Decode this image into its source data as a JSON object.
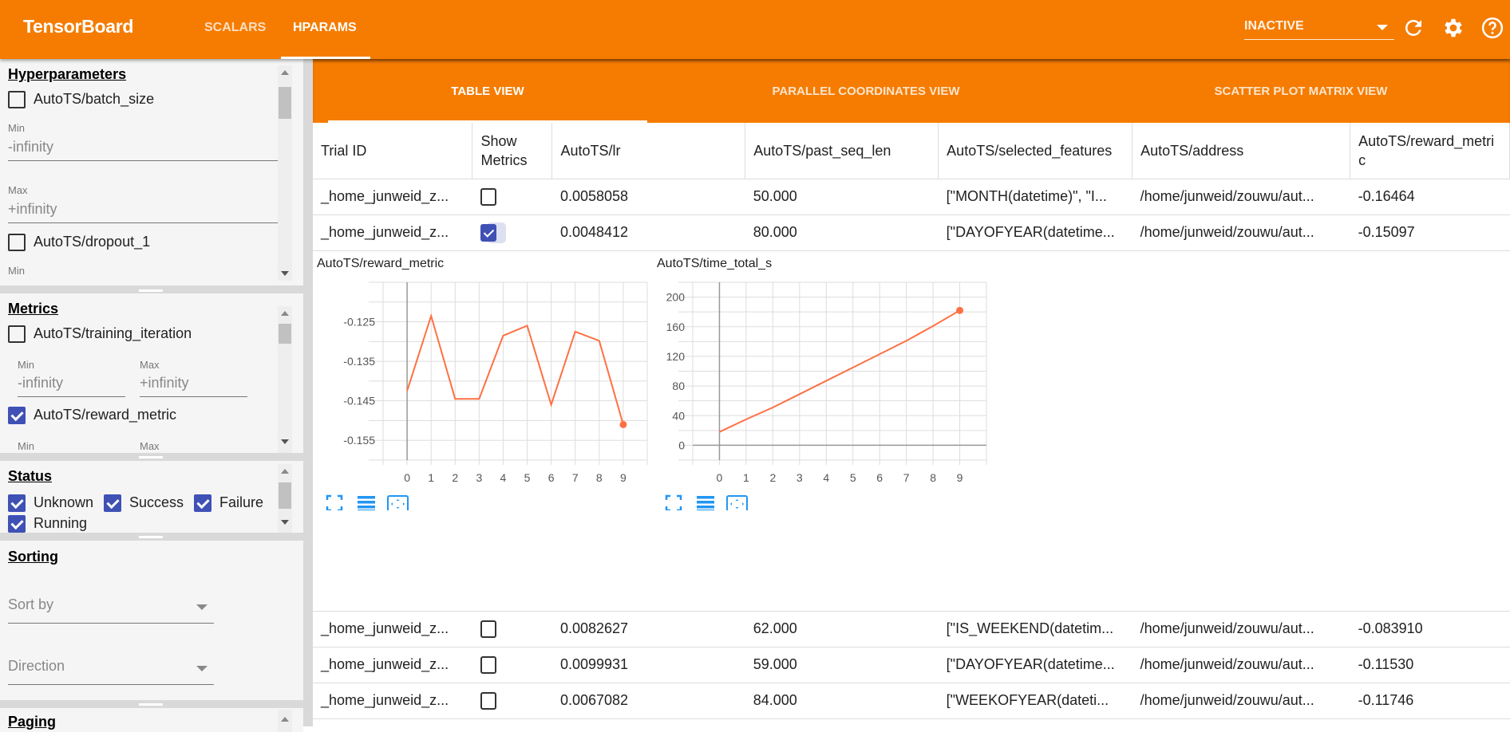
{
  "app": {
    "title": "TensorBoard",
    "nav": [
      {
        "label": "SCALARS",
        "active": false
      },
      {
        "label": "HPARAMS",
        "active": true
      }
    ],
    "run_select": "INACTIVE",
    "icons": [
      "refresh-icon",
      "settings-icon",
      "help-icon"
    ]
  },
  "sidebar": {
    "hyperparameters": {
      "title": "Hyperparameters",
      "items": [
        {
          "label": "AutoTS/batch_size",
          "checked": false,
          "min_label": "Min",
          "min": "-infinity",
          "max_label": "Max",
          "max": "+infinity"
        },
        {
          "label": "AutoTS/dropout_1",
          "checked": false,
          "min_label": "Min"
        }
      ]
    },
    "metrics": {
      "title": "Metrics",
      "items": [
        {
          "label": "AutoTS/training_iteration",
          "checked": false,
          "min_label": "Min",
          "min": "-infinity",
          "max_label": "Max",
          "max": "+infinity"
        },
        {
          "label": "AutoTS/reward_metric",
          "checked": true,
          "min_label": "Min",
          "max_label": "Max"
        }
      ]
    },
    "status": {
      "title": "Status",
      "items": [
        {
          "label": "Unknown",
          "checked": true
        },
        {
          "label": "Success",
          "checked": true
        },
        {
          "label": "Failure",
          "checked": true
        },
        {
          "label": "Running",
          "checked": true
        }
      ]
    },
    "sorting": {
      "title": "Sorting",
      "sort_by": "Sort by",
      "direction": "Direction"
    },
    "paging": {
      "title": "Paging"
    }
  },
  "views": [
    {
      "label": "TABLE VIEW",
      "active": true
    },
    {
      "label": "PARALLEL COORDINATES VIEW",
      "active": false
    },
    {
      "label": "SCATTER PLOT MATRIX VIEW",
      "active": false
    }
  ],
  "table": {
    "columns": [
      "Trial ID",
      "Show Metrics",
      "AutoTS/lr",
      "AutoTS/past_seq_len",
      "AutoTS/selected_features",
      "AutoTS/address",
      "AutoTS/reward_metric"
    ],
    "rows": [
      {
        "trial": "_home_junweid_z...",
        "show": false,
        "lr": "0.0058058",
        "past": "50.000",
        "features": "[\"MONTH(datetime)\", \"I...",
        "address": "/home/junweid/zouwu/aut...",
        "reward": "-0.16464"
      },
      {
        "trial": "_home_junweid_z...",
        "show": true,
        "lr": "0.0048412",
        "past": "80.000",
        "features": "[\"DAYOFYEAR(datetime...",
        "address": "/home/junweid/zouwu/aut...",
        "reward": "-0.15097"
      },
      {
        "trial": "_home_junweid_z...",
        "show": false,
        "lr": "0.0082627",
        "past": "62.000",
        "features": "[\"IS_WEEKEND(datetim...",
        "address": "/home/junweid/zouwu/aut...",
        "reward": "-0.083910"
      },
      {
        "trial": "_home_junweid_z...",
        "show": false,
        "lr": "0.0099931",
        "past": "59.000",
        "features": "[\"DAYOFYEAR(datetime...",
        "address": "/home/junweid/zouwu/aut...",
        "reward": "-0.11530"
      },
      {
        "trial": "_home_junweid_z...",
        "show": false,
        "lr": "0.0067082",
        "past": "84.000",
        "features": "[\"WEEKOFYEAR(dateti...",
        "address": "/home/junweid/zouwu/aut...",
        "reward": "-0.11746"
      }
    ]
  },
  "chart_data": [
    {
      "type": "line",
      "title": "AutoTS/reward_metric",
      "x": [
        0,
        1,
        2,
        3,
        4,
        5,
        6,
        7,
        8,
        9
      ],
      "values": [
        -0.1425,
        -0.1235,
        -0.1445,
        -0.1445,
        -0.1285,
        -0.126,
        -0.146,
        -0.1275,
        -0.1298,
        -0.151
      ],
      "ylim": [
        -0.16,
        -0.115
      ],
      "yticks": [
        -0.125,
        -0.135,
        -0.145,
        -0.155
      ],
      "xticks": [
        0,
        1,
        2,
        3,
        4,
        5,
        6,
        7,
        8,
        9
      ],
      "xlim": [
        -1,
        10
      ],
      "grid": true,
      "color": "#ff7043"
    },
    {
      "type": "line",
      "title": "AutoTS/time_total_s",
      "x": [
        0,
        1,
        2,
        3,
        4,
        5,
        6,
        7,
        8,
        9
      ],
      "values": [
        18,
        35,
        51,
        69,
        87,
        105,
        123,
        141,
        161,
        182
      ],
      "ylim": [
        -20,
        220
      ],
      "yticks": [
        0,
        40,
        80,
        120,
        160,
        200
      ],
      "xticks": [
        0,
        1,
        2,
        3,
        4,
        5,
        6,
        7,
        8,
        9
      ],
      "xlim": [
        -1,
        10
      ],
      "grid": true,
      "color": "#ff7043"
    }
  ],
  "chart_icons": [
    "fullscreen-icon",
    "data-table-icon",
    "fit-domain-icon"
  ],
  "colors": {
    "brand": "#f57c00",
    "checkbox": "#3f51b5",
    "line": "#ff7043",
    "icon": "#2196f3"
  }
}
